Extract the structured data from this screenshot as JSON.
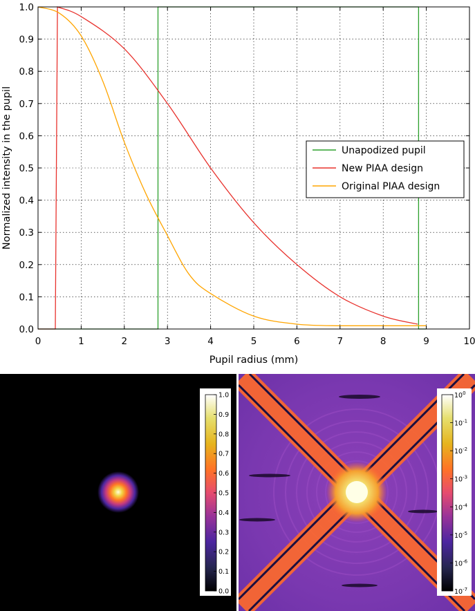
{
  "chart_data": [
    {
      "type": "line",
      "title": "",
      "xlabel": "Pupil radius (mm)",
      "ylabel": "Normalized intensity in the pupil",
      "xlim": [
        0,
        10
      ],
      "ylim": [
        0,
        1.0
      ],
      "grid": true,
      "legend_position": "right",
      "x_ticks": [
        "0",
        "1",
        "2",
        "3",
        "4",
        "5",
        "6",
        "7",
        "8",
        "9",
        "10"
      ],
      "y_ticks": [
        "0.0",
        "0.1",
        "0.2",
        "0.3",
        "0.4",
        "0.5",
        "0.6",
        "0.7",
        "0.8",
        "0.9",
        "1.0"
      ],
      "series": [
        {
          "name": "Unapodized pupil",
          "color": "#2ca02c",
          "x": [
            0,
            2.78,
            2.78,
            8.82,
            8.82,
            9.0
          ],
          "y": [
            0,
            0,
            1.0,
            1.0,
            0,
            0
          ]
        },
        {
          "name": "New PIAA design",
          "color": "#e8312c",
          "x": [
            0,
            0.4,
            0.45,
            1,
            2,
            3,
            4,
            5,
            6,
            7,
            8,
            8.8
          ],
          "y": [
            0,
            0,
            1.0,
            0.97,
            0.87,
            0.7,
            0.5,
            0.33,
            0.2,
            0.1,
            0.04,
            0.015
          ]
        },
        {
          "name": "Original PIAA design",
          "color": "#ffa500",
          "x": [
            0,
            0.5,
            1,
            1.5,
            2,
            2.5,
            3,
            3.5,
            4,
            5,
            6,
            7,
            8,
            9
          ],
          "y": [
            1.0,
            0.98,
            0.91,
            0.77,
            0.58,
            0.42,
            0.29,
            0.17,
            0.11,
            0.04,
            0.015,
            0.01,
            0.01,
            0.01
          ]
        }
      ]
    },
    {
      "type": "heatmap",
      "title": "",
      "scale": "linear",
      "colormap": "CMRmap",
      "colorbar_ticks": [
        "0.0",
        "0.1",
        "0.2",
        "0.3",
        "0.4",
        "0.5",
        "0.6",
        "0.7",
        "0.8",
        "0.9",
        "1.0"
      ],
      "clim": [
        0,
        1.0
      ]
    },
    {
      "type": "heatmap",
      "title": "",
      "scale": "log",
      "colormap": "CMRmap",
      "colorbar_ticks": [
        {
          "base": "10",
          "exp": "0"
        },
        {
          "base": "10",
          "exp": "-1"
        },
        {
          "base": "10",
          "exp": "-2"
        },
        {
          "base": "10",
          "exp": "-3"
        },
        {
          "base": "10",
          "exp": "-4"
        },
        {
          "base": "10",
          "exp": "-5"
        },
        {
          "base": "10",
          "exp": "-6"
        },
        {
          "base": "10",
          "exp": "-7"
        }
      ],
      "clim": [
        1e-07,
        1
      ]
    }
  ]
}
